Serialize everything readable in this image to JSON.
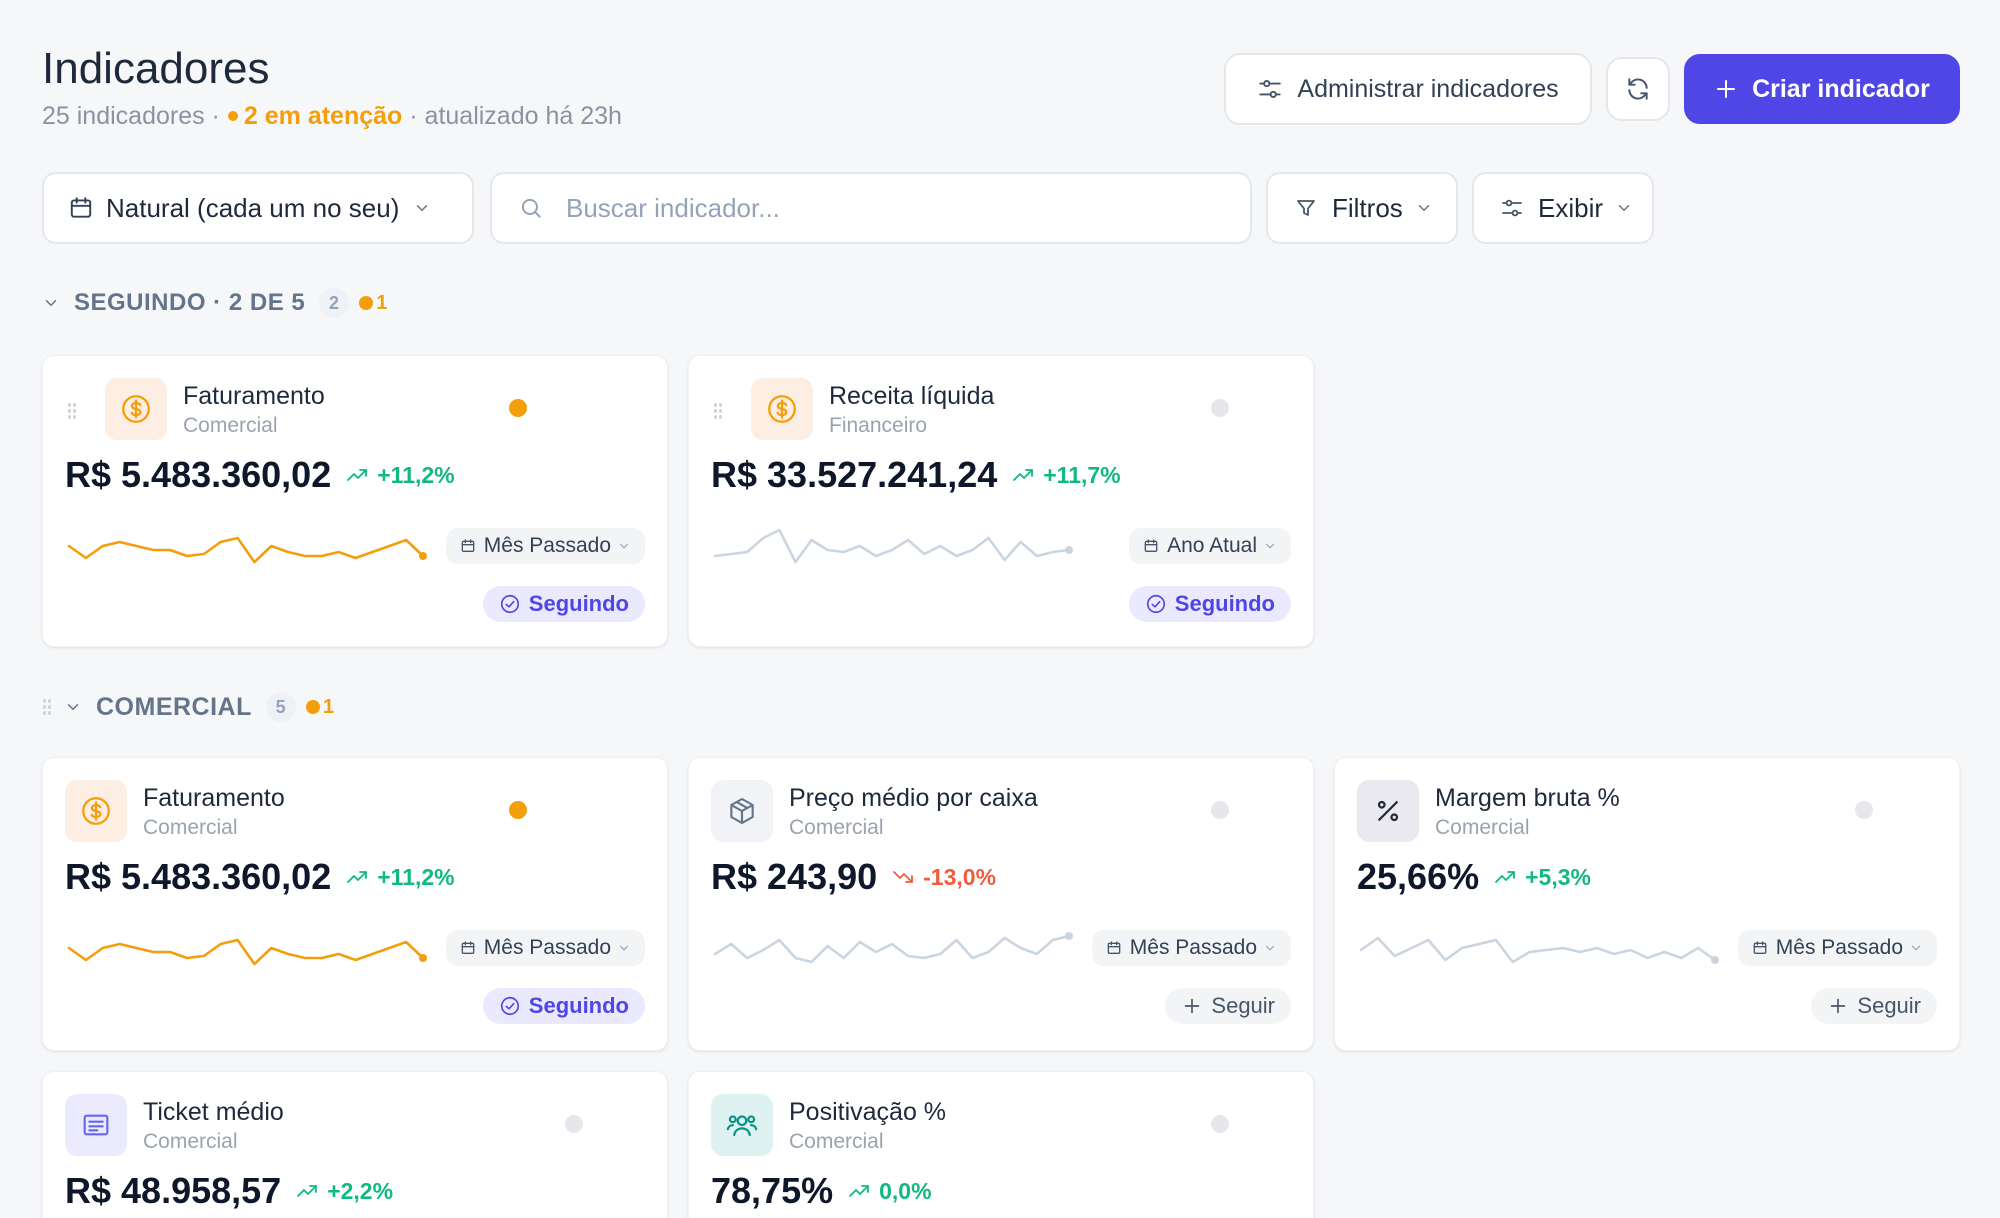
{
  "header": {
    "title": "Indicadores",
    "count_text": "25 indicadores ·",
    "attention_text": "2 em atenção",
    "updated_text": "· atualizado há 23h",
    "manage_label": "Administrar indicadores",
    "create_label": "Criar indicador"
  },
  "toolbar": {
    "period_label": "Natural (cada um no seu)",
    "search_placeholder": "Buscar indicador...",
    "filters_label": "Filtros",
    "display_label": "Exibir"
  },
  "sections": [
    {
      "title": "SEGUINDO · 2 DE 5",
      "count": "2",
      "attention": "1"
    },
    {
      "title": "COMERCIAL",
      "count": "5",
      "attention": "1"
    }
  ],
  "cards": [
    {
      "name": "Faturamento",
      "category": "Comercial",
      "value": "R$ 5.483.360,02",
      "delta": "+11,2%",
      "trend": "up",
      "period": "Mês Passado",
      "follow": "Seguindo",
      "following": true,
      "attention": true,
      "icon": "dollar-icon",
      "spark_color": "#f59e0b",
      "spark": [
        30,
        42,
        30,
        26,
        30,
        34,
        34,
        40,
        38,
        26,
        22,
        46,
        30,
        36,
        40,
        40,
        36,
        42,
        36,
        30,
        24,
        40
      ]
    },
    {
      "name": "Receita líquida",
      "category": "Financeiro",
      "value": "R$ 33.527.241,24",
      "delta": "+11,7%",
      "trend": "up",
      "period": "Ano Atual",
      "follow": "Seguindo",
      "following": true,
      "attention": false,
      "icon": "dollar-icon",
      "spark_color": "#cbd5e1",
      "spark": [
        40,
        38,
        36,
        22,
        14,
        46,
        24,
        34,
        36,
        30,
        40,
        34,
        24,
        38,
        30,
        40,
        34,
        22,
        44,
        26,
        40,
        36,
        34
      ]
    },
    {
      "name": "Faturamento",
      "category": "Comercial",
      "value": "R$ 5.483.360,02",
      "delta": "+11,2%",
      "trend": "up",
      "period": "Mês Passado",
      "follow": "Seguindo",
      "following": true,
      "attention": true,
      "icon": "dollar-icon",
      "spark_color": "#f59e0b",
      "spark": [
        30,
        42,
        30,
        26,
        30,
        34,
        34,
        40,
        38,
        26,
        22,
        46,
        30,
        36,
        40,
        40,
        36,
        42,
        36,
        30,
        24,
        40
      ]
    },
    {
      "name": "Preço médio por caixa",
      "category": "Comercial",
      "value": "R$ 243,90",
      "delta": "-13,0%",
      "trend": "down",
      "period": "Mês Passado",
      "follow": "Seguir",
      "following": false,
      "attention": false,
      "icon": "package-icon",
      "spark_color": "#cbd5e1",
      "spark": [
        36,
        26,
        40,
        32,
        22,
        40,
        44,
        28,
        40,
        24,
        34,
        26,
        38,
        40,
        36,
        22,
        40,
        34,
        20,
        30,
        36,
        22,
        18
      ]
    },
    {
      "name": "Margem bruta %",
      "category": "Comercial",
      "value": "25,66%",
      "delta": "+5,3%",
      "trend": "up",
      "period": "Mês Passado",
      "follow": "Seguir",
      "following": false,
      "attention": false,
      "icon": "percent-icon",
      "spark_color": "#cbd5e1",
      "spark": [
        32,
        20,
        38,
        30,
        22,
        42,
        30,
        26,
        22,
        44,
        34,
        32,
        30,
        34,
        30,
        36,
        32,
        40,
        34,
        40,
        30,
        42
      ]
    },
    {
      "name": "Ticket médio",
      "category": "Comercial",
      "value": "R$ 48.958,57",
      "delta": "+2,2%",
      "trend": "up",
      "period": "",
      "follow": "",
      "following": false,
      "attention": false,
      "icon": "receipt-icon",
      "spark_color": "#cbd5e1",
      "spark": []
    },
    {
      "name": "Positivação %",
      "category": "Comercial",
      "value": "78,75%",
      "delta": "0,0%",
      "trend": "up",
      "period": "",
      "follow": "",
      "following": false,
      "attention": false,
      "icon": "users-icon",
      "spark_color": "#cbd5e1",
      "spark": []
    }
  ]
}
